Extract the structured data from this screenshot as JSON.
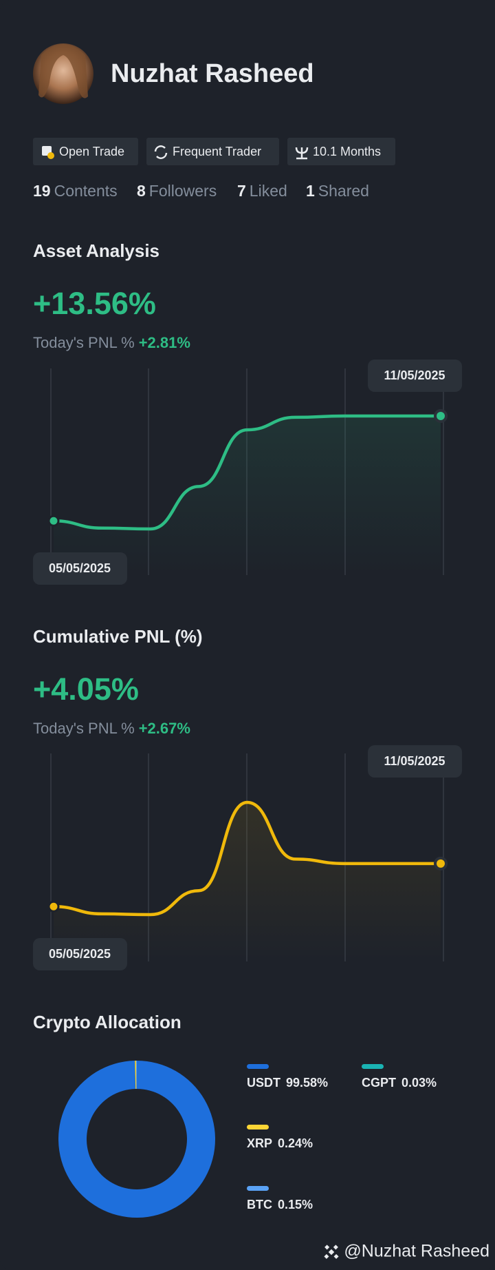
{
  "profile": {
    "name": "Nuzhat Rasheed",
    "badges": [
      "Open Trade",
      "Frequent Trader",
      "10.1 Months"
    ],
    "stats": [
      {
        "count": 19,
        "label": "Contents"
      },
      {
        "count": 8,
        "label": "Followers"
      },
      {
        "count": 7,
        "label": "Liked"
      },
      {
        "count": 1,
        "label": "Shared"
      }
    ]
  },
  "asset_analysis": {
    "title": "Asset Analysis",
    "value": "+13.56%",
    "today_label": "Today's PNL %",
    "today_value": "+2.81%",
    "chart": {
      "type": "line",
      "categories": [
        "05/05/2025",
        null,
        null,
        null,
        null,
        null,
        null,
        null,
        "11/05/2025"
      ],
      "values": [
        0.97,
        0.1,
        0,
        5.1,
        11.9,
        13.4,
        13.56,
        13.56,
        13.56
      ],
      "color": "#2ebd85"
    }
  },
  "cumulative_pnl": {
    "title": "Cumulative PNL (%)",
    "value": "+4.05%",
    "today_label": "Today's PNL %",
    "today_value": "+2.67%",
    "chart": {
      "type": "line",
      "categories": [
        "05/05/2025",
        null,
        null,
        null,
        null,
        null,
        null,
        null,
        "11/05/2025"
      ],
      "values": [
        0.64,
        0.06,
        0,
        1.9,
        8.9,
        4.4,
        4.05,
        4.05,
        4.05
      ],
      "color": "#f0b90b"
    }
  },
  "crypto_allocation": {
    "title": "Crypto Allocation",
    "chart": {
      "type": "pie",
      "categories": [
        "USDT",
        "CGPT",
        "XRP",
        "BTC"
      ],
      "values": [
        99.58,
        0.03,
        0.24,
        0.15
      ],
      "value_labels": [
        "99.58%",
        "0.03%",
        "0.24%",
        "0.15%"
      ],
      "colors": [
        "#1e6fdc",
        "#1ab3b3",
        "#fcd535",
        "#5aa2f5"
      ]
    }
  },
  "footer": {
    "handle": "@Nuzhat Rasheed"
  }
}
